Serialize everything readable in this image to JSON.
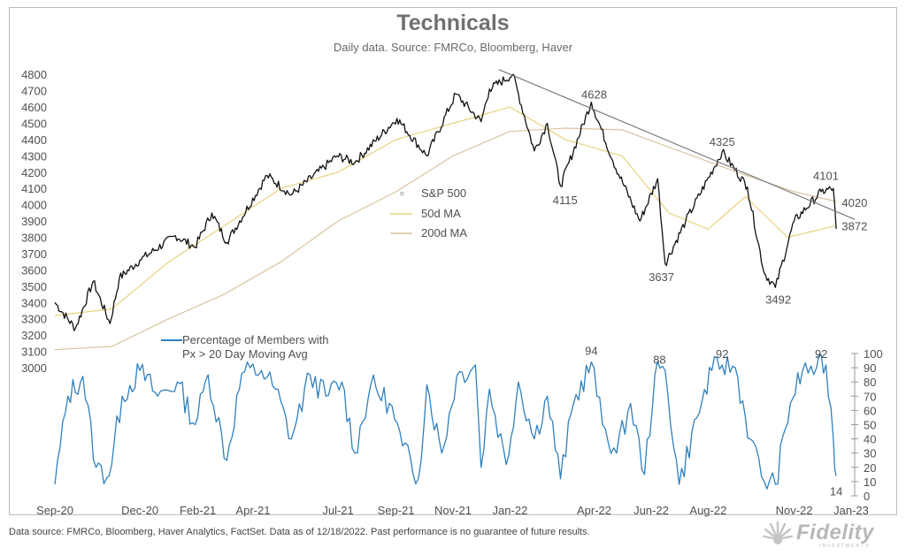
{
  "header": {
    "title": "Technicals",
    "subtitle": "Daily data.  Source: FMRCo, Bloomberg, Haver"
  },
  "footer": {
    "note": "Data source: FMRCo, Bloomberg, Haver Analytics, FactSet. Data as of 12/18/2022. Past performance is no guarantee of future results.",
    "logo": "Fidelity",
    "logo_sub": "INVESTMENTS"
  },
  "colors": {
    "price": "#111111",
    "ma50": "#e8d27c",
    "ma200": "#d9c3a0",
    "breadth": "#2f80bd",
    "trendline": "#7a7a7a",
    "label_4020": "#d2863a",
    "label_3872": "#e0b030"
  },
  "chart_data": [
    {
      "type": "line",
      "panel": "price",
      "ylim": [
        3000,
        4850
      ],
      "yticks": [
        3000,
        3100,
        3200,
        3300,
        3400,
        3500,
        3600,
        3700,
        3800,
        3900,
        4000,
        4100,
        4200,
        4300,
        4400,
        4500,
        4600,
        4700,
        4800
      ],
      "x_ticks": [
        "Sep-20",
        "Dec-20",
        "Feb-21",
        "Apr-21",
        "Jul-21",
        "Sep-21",
        "Nov-21",
        "Jan-22",
        "Apr-22",
        "Jun-22",
        "Aug-22",
        "Nov-22",
        "Jan-23"
      ],
      "x_tick_dates": [
        "2020-09-01",
        "2020-12-01",
        "2021-02-01",
        "2021-04-01",
        "2021-07-01",
        "2021-09-01",
        "2021-11-01",
        "2022-01-01",
        "2022-04-01",
        "2022-06-01",
        "2022-08-01",
        "2022-11-01",
        "2023-01-01"
      ],
      "series": [
        {
          "name": "S&P 500",
          "x": [
            "2020-09-01",
            "2020-09-23",
            "2020-10-12",
            "2020-10-30",
            "2020-11-09",
            "2020-12-01",
            "2021-01-08",
            "2021-01-29",
            "2021-02-16",
            "2021-03-04",
            "2021-04-16",
            "2021-05-12",
            "2021-06-30",
            "2021-07-19",
            "2021-09-02",
            "2021-10-04",
            "2021-11-04",
            "2021-12-01",
            "2021-12-10",
            "2022-01-04",
            "2022-01-27",
            "2022-02-10",
            "2022-02-24",
            "2022-03-29",
            "2022-04-21",
            "2022-05-20",
            "2022-06-08",
            "2022-06-16",
            "2022-07-08",
            "2022-08-16",
            "2022-09-12",
            "2022-09-30",
            "2022-10-12",
            "2022-11-01",
            "2022-11-30",
            "2022-12-13",
            "2022-12-16"
          ],
          "y": [
            3400,
            3240,
            3530,
            3270,
            3550,
            3660,
            3810,
            3740,
            3950,
            3770,
            4180,
            4060,
            4300,
            4260,
            4530,
            4300,
            4680,
            4510,
            4710,
            4800,
            4330,
            4500,
            4115,
            4630,
            4270,
            3900,
            4160,
            3637,
            3900,
            4325,
            4110,
            3580,
            3492,
            3900,
            4080,
            4101,
            3852
          ]
        },
        {
          "name": "50d MA",
          "x": [
            "2020-09-01",
            "2020-11-01",
            "2021-01-01",
            "2021-03-01",
            "2021-05-01",
            "2021-07-01",
            "2021-09-01",
            "2021-11-01",
            "2022-01-01",
            "2022-03-01",
            "2022-05-01",
            "2022-06-20",
            "2022-08-01",
            "2022-09-10",
            "2022-10-25",
            "2022-12-16"
          ],
          "y": [
            3320,
            3360,
            3650,
            3870,
            4100,
            4200,
            4400,
            4500,
            4600,
            4400,
            4300,
            3950,
            3850,
            4050,
            3800,
            3872
          ]
        },
        {
          "name": "200d MA",
          "x": [
            "2020-09-01",
            "2020-11-01",
            "2021-01-01",
            "2021-03-01",
            "2021-05-01",
            "2021-07-01",
            "2021-09-01",
            "2021-11-01",
            "2022-01-01",
            "2022-03-01",
            "2022-05-01",
            "2022-07-01",
            "2022-09-01",
            "2022-11-01",
            "2022-12-16"
          ],
          "y": [
            3110,
            3130,
            3300,
            3450,
            3650,
            3900,
            4080,
            4300,
            4450,
            4470,
            4460,
            4330,
            4200,
            4080,
            4020
          ]
        }
      ],
      "trendline": {
        "x": [
          "2021-12-20",
          "2023-01-05"
        ],
        "y": [
          4830,
          3910
        ]
      },
      "annotations": [
        {
          "text": "4628",
          "x": "2022-04-01",
          "y": 4680
        },
        {
          "text": "4115",
          "x": "2022-03-01",
          "y": 4030
        },
        {
          "text": "3637",
          "x": "2022-06-12",
          "y": 3560
        },
        {
          "text": "4325",
          "x": "2022-08-16",
          "y": 4390
        },
        {
          "text": "3492",
          "x": "2022-10-15",
          "y": 3420
        },
        {
          "text": "4101",
          "x": "2022-12-05",
          "y": 4180
        },
        {
          "text": "4020",
          "x": "2022-12-22",
          "y": 4015
        },
        {
          "text": "3872",
          "x": "2022-12-22",
          "y": 3870
        }
      ]
    },
    {
      "type": "line",
      "panel": "breadth",
      "ylim": [
        0,
        100
      ],
      "yticks": [
        0,
        10,
        20,
        30,
        40,
        50,
        60,
        70,
        80,
        90,
        100
      ],
      "series": [
        {
          "name": "Percentage of Members with Px > 20 Day Moving Avg",
          "x": [
            "2020-09-01",
            "2020-09-15",
            "2020-10-01",
            "2020-10-15",
            "2020-10-29",
            "2020-11-12",
            "2020-12-01",
            "2020-12-20",
            "2021-01-10",
            "2021-01-29",
            "2021-02-12",
            "2021-03-04",
            "2021-03-20",
            "2021-04-10",
            "2021-04-25",
            "2021-05-12",
            "2021-06-01",
            "2021-06-18",
            "2021-07-05",
            "2021-07-19",
            "2021-08-05",
            "2021-08-25",
            "2021-09-08",
            "2021-09-25",
            "2021-10-04",
            "2021-10-20",
            "2021-11-05",
            "2021-11-25",
            "2021-12-01",
            "2021-12-10",
            "2021-12-28",
            "2022-01-10",
            "2022-01-27",
            "2022-02-10",
            "2022-02-24",
            "2022-03-10",
            "2022-03-29",
            "2022-04-10",
            "2022-04-25",
            "2022-05-10",
            "2022-05-25",
            "2022-06-05",
            "2022-06-16",
            "2022-07-01",
            "2022-07-20",
            "2022-08-05",
            "2022-08-16",
            "2022-08-30",
            "2022-09-15",
            "2022-09-30",
            "2022-10-12",
            "2022-10-28",
            "2022-11-10",
            "2022-11-25",
            "2022-12-05",
            "2022-12-13",
            "2022-12-16"
          ],
          "y": [
            8,
            70,
            84,
            20,
            14,
            70,
            88,
            70,
            80,
            50,
            85,
            25,
            86,
            88,
            75,
            40,
            85,
            70,
            80,
            30,
            78,
            65,
            35,
            12,
            78,
            30,
            84,
            92,
            20,
            75,
            22,
            80,
            40,
            70,
            12,
            65,
            94,
            50,
            30,
            65,
            15,
            85,
            88,
            8,
            55,
            88,
            92,
            90,
            40,
            10,
            8,
            65,
            88,
            90,
            92,
            40,
            14
          ]
        }
      ],
      "annotations": [
        {
          "text": "94",
          "x": "2022-03-29",
          "y": 94
        },
        {
          "text": "88",
          "x": "2022-06-10",
          "y": 88
        },
        {
          "text": "92",
          "x": "2022-08-16",
          "y": 92
        },
        {
          "text": "92",
          "x": "2022-11-30",
          "y": 92
        },
        {
          "text": "14",
          "x": "2022-12-16",
          "y": 14
        }
      ]
    }
  ]
}
